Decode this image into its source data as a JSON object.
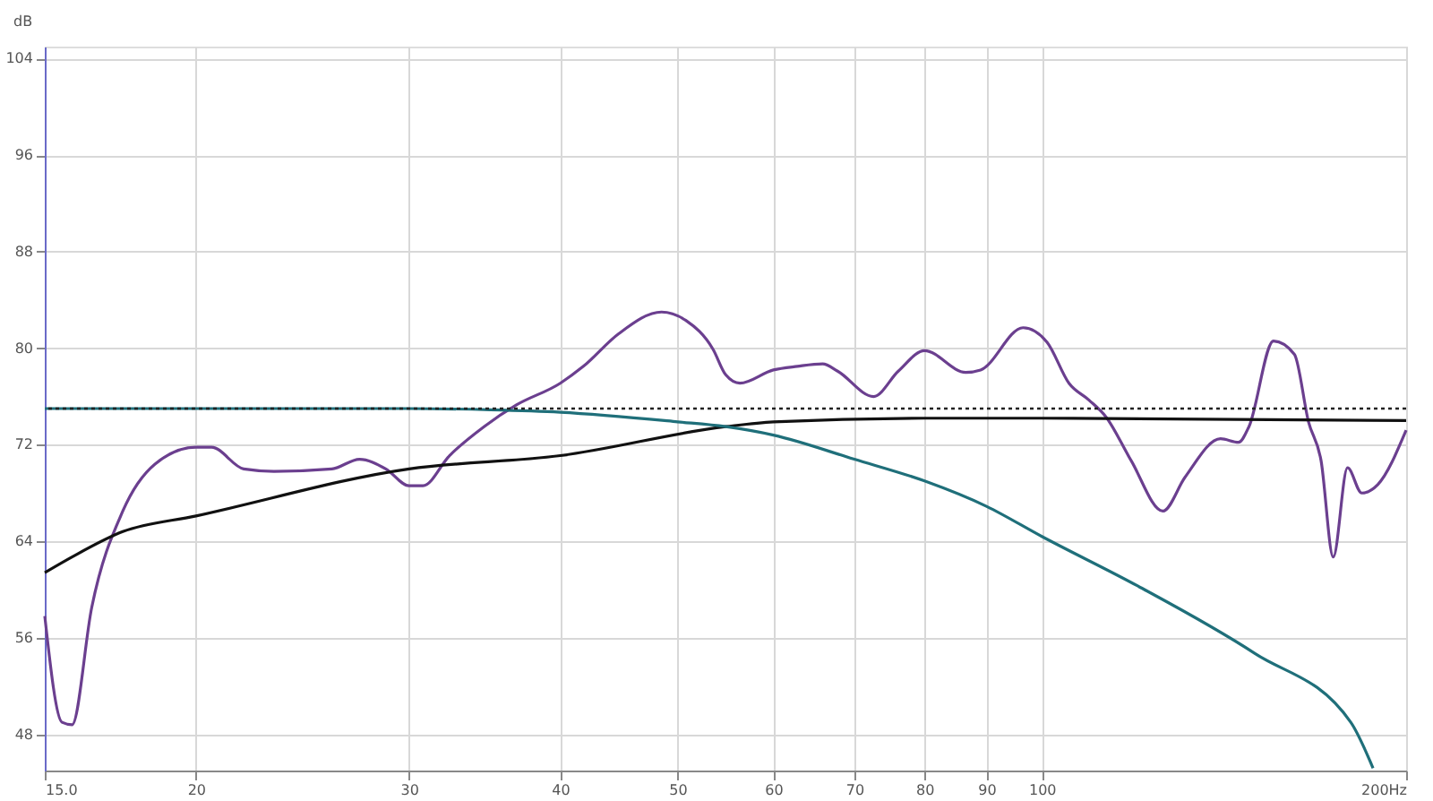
{
  "chart_data": {
    "type": "line",
    "ylabel": "dB",
    "xlim": [
      15,
      200
    ],
    "ylim": [
      45,
      105
    ],
    "log": "x",
    "grid": true,
    "legend": false,
    "marker": "none",
    "line_style": "solid",
    "xticks": [
      {
        "value": 15,
        "label": "15.0"
      },
      20,
      30,
      40,
      50,
      60,
      70,
      80,
      90,
      100,
      {
        "value": 200,
        "label": "200Hz"
      }
    ],
    "yticks": [
      48,
      56,
      64,
      72,
      80,
      88,
      96,
      104
    ],
    "series": [
      {
        "color": "#6b3f8f",
        "x": [
          15,
          15.5,
          15.8,
          16.4,
          17.4,
          18.5,
          20,
          20.6,
          21.9,
          23.2,
          25.9,
          27.3,
          28.7,
          30,
          30.8,
          32.4,
          34.6,
          36.8,
          40,
          41.8,
          44.7,
          48.5,
          50.8,
          53.5,
          54.8,
          56.3,
          60,
          62.8,
          65.9,
          67.8,
          72.6,
          76.1,
          80,
          86.5,
          89,
          96.5,
          101,
          105.3,
          109.4,
          113,
          118.5,
          125.9,
          131.3,
          140.5,
          145.4,
          148.3,
          155.4,
          161.7,
          166.1,
          170.1,
          174.1,
          178.9,
          183.8,
          189.5,
          200
        ],
        "values": [
          57.8,
          49.0,
          48.8,
          58.5,
          66.5,
          70.4,
          71.8,
          71.8,
          70.0,
          69.8,
          70.0,
          70.8,
          70.0,
          68.6,
          68.6,
          71.1,
          73.5,
          75.3,
          77.1,
          78.5,
          81.2,
          83.0,
          82.3,
          79.9,
          77.8,
          77.1,
          78.2,
          78.5,
          78.7,
          78.1,
          76.0,
          78.1,
          79.8,
          78.0,
          78.2,
          81.7,
          80.5,
          77.1,
          75.7,
          74.3,
          70.7,
          66.5,
          69.3,
          72.5,
          72.2,
          73.5,
          80.6,
          79.5,
          73.9,
          70.7,
          62.7,
          70.1,
          68.0,
          68.7,
          73.2
        ]
      },
      {
        "color": "#111111",
        "x": [
          15,
          15.8,
          17.4,
          20,
          30,
          40,
          54.8,
          60,
          80,
          100,
          200
        ],
        "values": [
          61.4,
          62.7,
          64.8,
          66.1,
          70.0,
          71.1,
          73.5,
          73.9,
          74.2,
          74.2,
          74.0
        ]
      },
      {
        "color": "#1f6f7a",
        "x": [
          15,
          30,
          35,
          40,
          50,
          54.8,
          60,
          70,
          80,
          90,
          100,
          120,
          150,
          180,
          187.8
        ],
        "values": [
          75.0,
          75.0,
          74.9,
          74.7,
          73.9,
          73.5,
          72.8,
          70.8,
          69.0,
          66.9,
          64.4,
          60.3,
          54.7,
          49.0,
          45.2
        ]
      }
    ],
    "ref_lines": [
      {
        "axis": "y",
        "value": 75.0,
        "color": "#222222",
        "line_style": "dotted"
      }
    ]
  }
}
